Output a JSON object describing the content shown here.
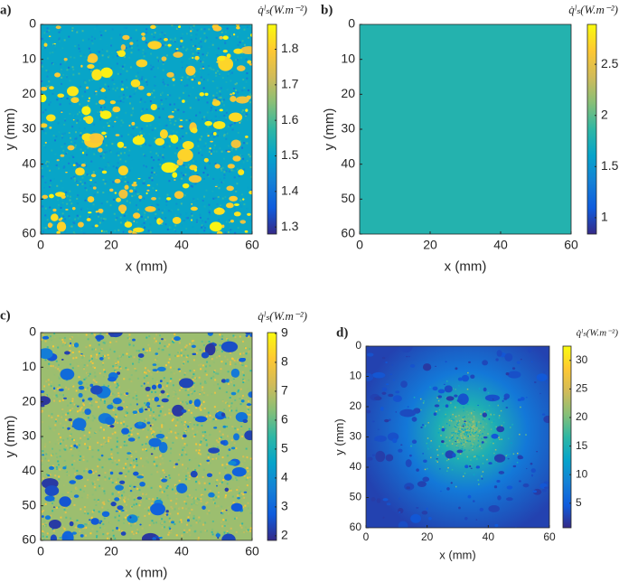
{
  "chart_data": [
    {
      "type": "heatmap",
      "label": "a)",
      "colorbar_label": "q̇ˡₛ(W.m⁻²)",
      "xlabel": "x (mm)",
      "ylabel": "y (mm)",
      "xlim": [
        0,
        60
      ],
      "ylim": [
        0,
        60
      ],
      "y_reversed": true,
      "xticks": [
        0,
        20,
        40,
        60
      ],
      "yticks": [
        0,
        10,
        20,
        30,
        40,
        50,
        60
      ],
      "colormap": "parula",
      "clim": [
        1.28,
        1.87
      ],
      "cticks": [
        1.3,
        1.4,
        1.5,
        1.6,
        1.7,
        1.8
      ]
    },
    {
      "type": "uniform",
      "label": "b)",
      "colorbar_label": "q̇ˡₛ(W.m⁻²)",
      "xlabel": "x (mm)",
      "ylabel": "y (mm)",
      "xlim": [
        0,
        60
      ],
      "ylim": [
        0,
        60
      ],
      "y_reversed": true,
      "xticks": [
        0,
        20,
        40,
        60
      ],
      "yticks": [
        0,
        10,
        20,
        30,
        40,
        50,
        60
      ],
      "colormap": "parula",
      "clim": [
        0.84,
        2.89
      ],
      "cticks": [
        1,
        1.5,
        2,
        2.5
      ],
      "value": 1.8
    },
    {
      "type": "heatmap",
      "label": "c)",
      "colorbar_label": "q̇ˡₛ(W.m⁻²)",
      "xlabel": "x (mm)",
      "ylabel": "y (mm)",
      "xlim": [
        0,
        60
      ],
      "ylim": [
        0,
        60
      ],
      "y_reversed": true,
      "xticks": [
        0,
        20,
        40,
        60
      ],
      "yticks": [
        0,
        10,
        20,
        30,
        40,
        50,
        60
      ],
      "colormap": "parula",
      "clim": [
        1.84,
        9.03
      ],
      "cticks": [
        2,
        3,
        4,
        5,
        6,
        7,
        8,
        9
      ]
    },
    {
      "type": "heatmap",
      "label": "d)",
      "colorbar_label": "q̇ˡₛ(W.m⁻²)",
      "xlabel": "x (mm)",
      "ylabel": "y (mm)",
      "xlim": [
        0,
        60
      ],
      "ylim": [
        0,
        60
      ],
      "y_reversed": true,
      "xticks": [
        0,
        20,
        40,
        60
      ],
      "yticks": [
        0,
        10,
        20,
        30,
        40,
        50,
        60
      ],
      "colormap": "parula",
      "clim": [
        0.7,
        32.5
      ],
      "cticks": [
        5,
        10,
        15,
        20,
        25,
        30
      ]
    }
  ]
}
